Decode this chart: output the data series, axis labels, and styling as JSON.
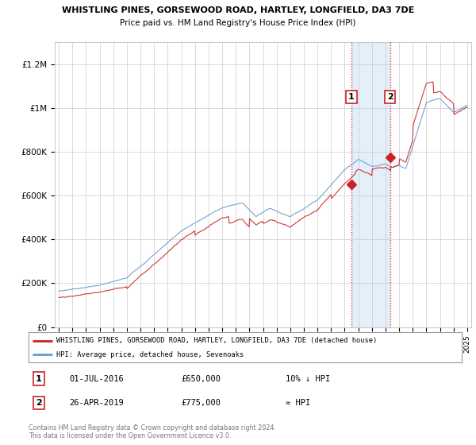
{
  "title1": "WHISTLING PINES, GORSEWOOD ROAD, HARTLEY, LONGFIELD, DA3 7DE",
  "title2": "Price paid vs. HM Land Registry's House Price Index (HPI)",
  "ylim": [
    0,
    1300000
  ],
  "yticks": [
    0,
    200000,
    400000,
    600000,
    800000,
    1000000,
    1200000
  ],
  "ytick_labels": [
    "£0",
    "£200K",
    "£400K",
    "£600K",
    "£800K",
    "£1M",
    "£1.2M"
  ],
  "marker1_year": 2016.5,
  "marker1_label": "1",
  "marker1_value": 650000,
  "marker2_year": 2019.33,
  "marker2_label": "2",
  "marker2_value": 775000,
  "line1_color": "#cc2222",
  "line2_color": "#6699cc",
  "marker_line_color": "#cc2222",
  "grid_color": "#cccccc",
  "background_color": "#ffffff",
  "legend_line1": "WHISTLING PINES, GORSEWOOD ROAD, HARTLEY, LONGFIELD, DA3 7DE (detached house)",
  "legend_line2": "HPI: Average price, detached house, Sevenoaks",
  "footnote": "Contains HM Land Registry data © Crown copyright and database right 2024.\nThis data is licensed under the Open Government Licence v3.0.",
  "table_row1": [
    "1",
    "01-JUL-2016",
    "£650,000",
    "10% ↓ HPI"
  ],
  "table_row2": [
    "2",
    "26-APR-2019",
    "£775,000",
    "≈ HPI"
  ]
}
